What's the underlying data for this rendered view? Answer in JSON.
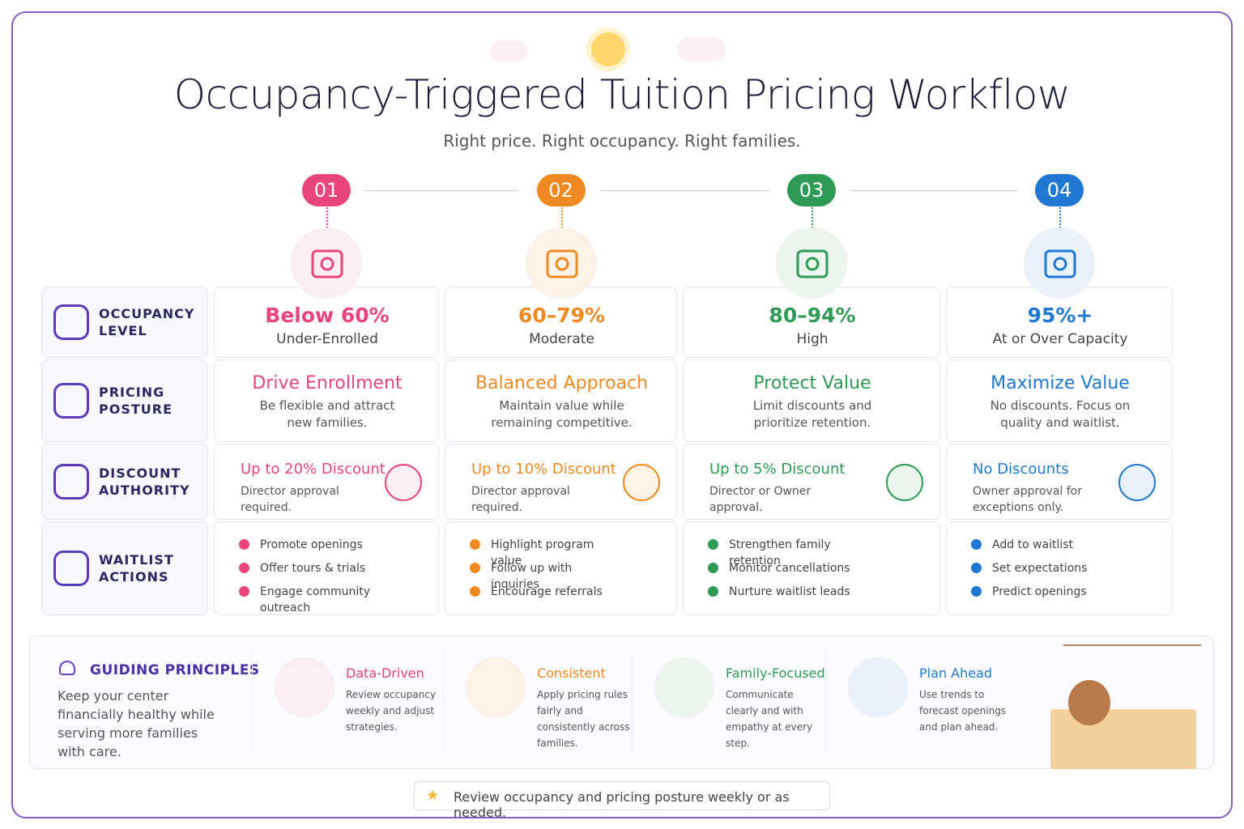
{
  "header": {
    "title": "Occupancy-Triggered Tuition Pricing Workflow",
    "subtitle": "Right price. Right occupancy. Right families."
  },
  "rows": [
    {
      "label": "OCCUPANCY LEVEL"
    },
    {
      "label": "PRICING POSTURE"
    },
    {
      "label": "DISCOUNT AUTHORITY"
    },
    {
      "label": "WAITLIST ACTIONS"
    }
  ],
  "stages": [
    {
      "number": "01",
      "range": "Below 60%",
      "status": "Under-Enrolled",
      "posture_title": "Drive Enrollment",
      "posture_text": "Be flexible and attract new families.",
      "discount_title": "Up to 20% Discount",
      "discount_text": "Director approval required.",
      "actions": [
        "Promote openings",
        "Offer tours & trials",
        "Engage community outreach"
      ]
    },
    {
      "number": "02",
      "range": "60–79%",
      "status": "Moderate",
      "posture_title": "Balanced Approach",
      "posture_text": "Maintain value while remaining competitive.",
      "discount_title": "Up to 10% Discount",
      "discount_text": "Director approval required.",
      "actions": [
        "Highlight program value",
        "Follow up with inquiries",
        "Encourage referrals"
      ]
    },
    {
      "number": "03",
      "range": "80–94%",
      "status": "High",
      "posture_title": "Protect Value",
      "posture_text": "Limit discounts and prioritize retention.",
      "discount_title": "Up to 5% Discount",
      "discount_text": "Director or Owner approval.",
      "actions": [
        "Strengthen family retention",
        "Monitor cancellations",
        "Nurture waitlist leads"
      ]
    },
    {
      "number": "04",
      "range": "95%+",
      "status": "At or Over Capacity",
      "posture_title": "Maximize Value",
      "posture_text": "No discounts. Focus on quality and waitlist.",
      "discount_title": "No Discounts",
      "discount_text": "Owner approval for exceptions only.",
      "actions": [
        "Add to waitlist",
        "Set expectations",
        "Predict openings"
      ]
    }
  ],
  "principles": {
    "title": "GUIDING PRINCIPLES",
    "text": "Keep your center financially healthy while serving more families with care.",
    "items": [
      {
        "title": "Data-Driven",
        "text": "Review occupancy weekly and adjust strategies."
      },
      {
        "title": "Consistent",
        "text": "Apply pricing rules fairly and consistently across families."
      },
      {
        "title": "Family-Focused",
        "text": "Communicate clearly and with empathy at every step."
      },
      {
        "title": "Plan Ahead",
        "text": "Use trends to forecast openings and plan ahead."
      }
    ]
  },
  "footer": {
    "note": "Review occupancy and pricing posture weekly or as needed."
  }
}
